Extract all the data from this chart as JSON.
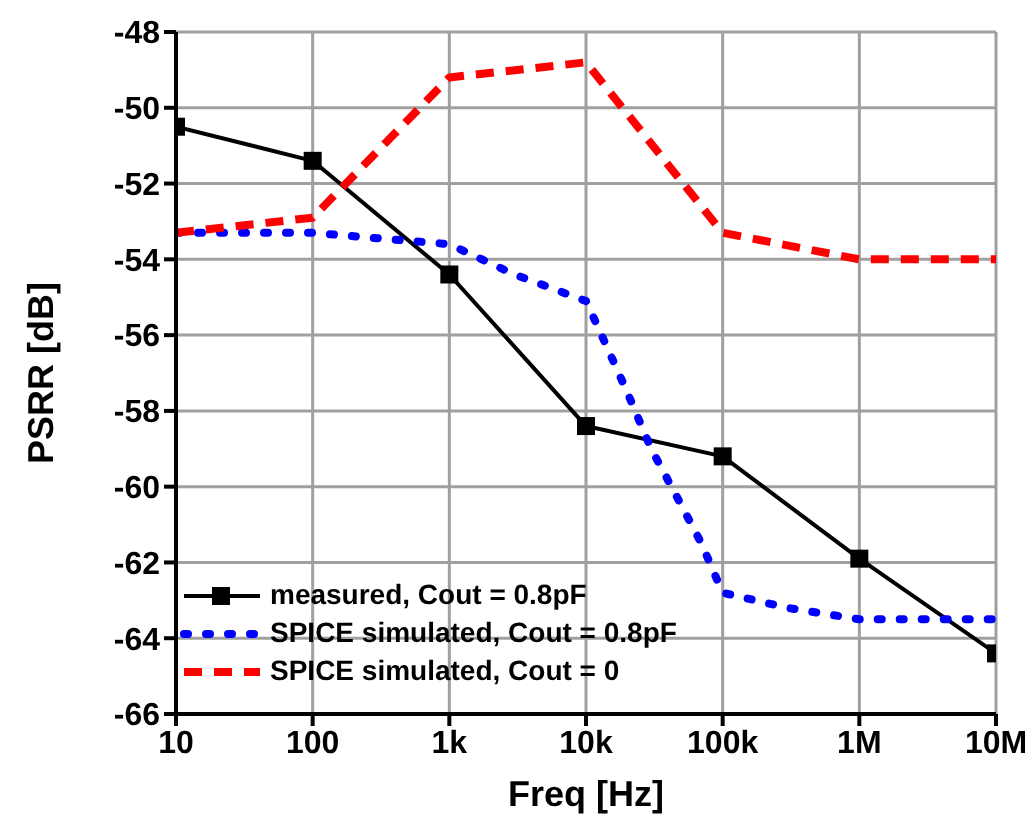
{
  "chart_data": {
    "type": "line",
    "xlabel": "Freq [Hz]",
    "ylabel": "PSRR [dB]",
    "log": "x",
    "xlim": [
      10,
      10000000
    ],
    "xticks": [
      10,
      100,
      {
        "value": 1000,
        "label": "1k"
      },
      {
        "value": 10000,
        "label": "10k"
      },
      {
        "value": 100000,
        "label": "100k"
      },
      {
        "value": 1000000,
        "label": "1M"
      },
      {
        "value": 10000000,
        "label": "10M"
      }
    ],
    "ylim": [
      -66,
      -48
    ],
    "yticks": [
      -66,
      -64,
      -62,
      -60,
      -58,
      -56,
      -54,
      -52,
      -50,
      -48
    ],
    "grid": true,
    "legend": "bottom left",
    "series": [
      {
        "name": "measured, Cout = 0.8pF",
        "color": "#000000",
        "marker": "square",
        "line_style": "solid",
        "x": [
          10,
          100,
          1000,
          10000,
          100000,
          1000000,
          10000000
        ],
        "values": [
          -50.5,
          -51.4,
          -54.4,
          -58.4,
          -59.2,
          -61.9,
          -64.4
        ]
      },
      {
        "name": "SPICE simulated, Cout = 0.8pF",
        "color": "#0000ff",
        "marker": "none",
        "line_style": "dotted",
        "x": [
          10,
          100,
          1000,
          3000,
          10000,
          13000,
          20000,
          30000,
          50000,
          70000,
          100000,
          300000,
          1000000,
          10000000
        ],
        "values": [
          -53.3,
          -53.3,
          -53.6,
          -54.4,
          -55.1,
          -56,
          -57.5,
          -59,
          -60.5,
          -61.5,
          -62.8,
          -63.2,
          -63.5,
          -63.5
        ]
      },
      {
        "name": "SPICE simulated, Cout = 0",
        "color": "#ff0000",
        "marker": "none",
        "line_style": "dashed",
        "x": [
          10,
          100,
          1000,
          10000,
          100000,
          1000000,
          10000000
        ],
        "values": [
          -53.3,
          -52.9,
          -49.2,
          -48.8,
          -53.3,
          -54,
          -54
        ]
      }
    ]
  }
}
